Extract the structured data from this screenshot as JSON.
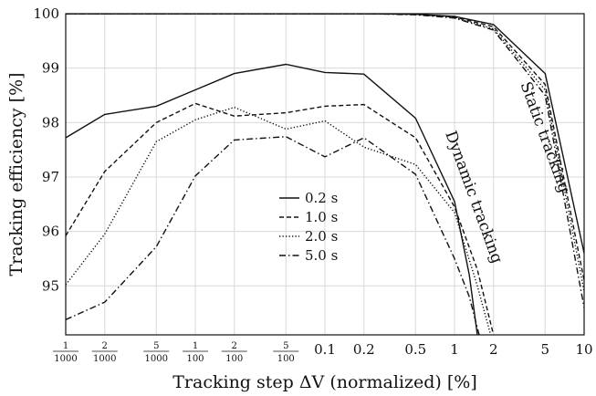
{
  "chart_data": {
    "type": "line",
    "xlabel": "Tracking step ΔV (normalized) [%]",
    "ylabel": "Tracking efficiency [%]",
    "xscale": "log",
    "xlim": [
      0.001,
      10
    ],
    "ylim": [
      94.1,
      100
    ],
    "grid": true,
    "legend_position": "center",
    "x_ticks": [
      {
        "value": 0.001,
        "num": "1",
        "den": "1000"
      },
      {
        "value": 0.002,
        "num": "2",
        "den": "1000"
      },
      {
        "value": 0.005,
        "num": "5",
        "den": "1000"
      },
      {
        "value": 0.01,
        "num": "1",
        "den": "100"
      },
      {
        "value": 0.02,
        "num": "2",
        "den": "100"
      },
      {
        "value": 0.05,
        "num": "5",
        "den": "100"
      },
      {
        "value": 0.1,
        "label": "0.1"
      },
      {
        "value": 0.2,
        "label": "0.2"
      },
      {
        "value": 0.5,
        "label": "0.5"
      },
      {
        "value": 1,
        "label": "1"
      },
      {
        "value": 2,
        "label": "2"
      },
      {
        "value": 5,
        "label": "5"
      },
      {
        "value": 10,
        "label": "10"
      }
    ],
    "y_ticks": [
      95,
      96,
      97,
      98,
      99,
      100
    ],
    "annotations": [
      {
        "text": "Dynamic tracking",
        "x": 1.3,
        "y": 96.6
      },
      {
        "text": "Static tracking",
        "x": 4.6,
        "y": 97.7
      }
    ],
    "series": [
      {
        "name": "0.2 s",
        "dash": "solid",
        "group": "dynamic",
        "x": [
          0.001,
          0.002,
          0.005,
          0.01,
          0.02,
          0.05,
          0.1,
          0.2,
          0.5,
          1,
          1.3,
          1.5
        ],
        "y": [
          97.72,
          98.15,
          98.3,
          98.6,
          98.9,
          99.07,
          98.92,
          98.89,
          98.08,
          96.55,
          95.2,
          94.1
        ]
      },
      {
        "name": "1.0 s",
        "dash": "dashed",
        "group": "dynamic",
        "x": [
          0.001,
          0.002,
          0.005,
          0.01,
          0.02,
          0.05,
          0.1,
          0.2,
          0.5,
          1,
          1.5,
          2
        ],
        "y": [
          95.92,
          97.1,
          98.0,
          98.35,
          98.12,
          98.18,
          98.3,
          98.33,
          97.72,
          96.45,
          95.3,
          94.1
        ]
      },
      {
        "name": "2.0 s",
        "dash": "dotted",
        "group": "dynamic",
        "x": [
          0.001,
          0.002,
          0.005,
          0.01,
          0.02,
          0.05,
          0.1,
          0.2,
          0.5,
          1,
          1.5,
          1.9
        ],
        "y": [
          95.02,
          95.95,
          97.65,
          98.05,
          98.28,
          97.88,
          98.03,
          97.55,
          97.23,
          96.35,
          95.0,
          94.1
        ]
      },
      {
        "name": "5.0 s",
        "dash": "dashdot",
        "group": "dynamic",
        "x": [
          0.001,
          0.002,
          0.005,
          0.01,
          0.02,
          0.05,
          0.1,
          0.2,
          0.5,
          1,
          1.3,
          1.55
        ],
        "y": [
          94.38,
          94.7,
          95.72,
          97.02,
          97.68,
          97.74,
          97.37,
          97.72,
          97.05,
          95.5,
          94.8,
          94.1
        ]
      },
      {
        "name": "0.2 s",
        "dash": "solid",
        "group": "static",
        "x": [
          0.001,
          0.01,
          0.1,
          0.2,
          0.5,
          1,
          2,
          5,
          10
        ],
        "y": [
          100,
          100,
          100,
          100,
          99.99,
          99.95,
          99.8,
          98.9,
          95.6
        ]
      },
      {
        "name": "1.0 s",
        "dash": "dashed",
        "group": "static",
        "x": [
          0.001,
          0.01,
          0.1,
          0.2,
          0.5,
          1,
          2,
          5,
          10
        ],
        "y": [
          100,
          100,
          100,
          100,
          99.99,
          99.94,
          99.76,
          98.7,
          95.1
        ]
      },
      {
        "name": "2.0 s",
        "dash": "dotted",
        "group": "static",
        "x": [
          0.001,
          0.01,
          0.1,
          0.2,
          0.5,
          1,
          2,
          5,
          10
        ],
        "y": [
          100,
          100,
          100,
          100,
          99.99,
          99.93,
          99.72,
          98.6,
          94.9
        ]
      },
      {
        "name": "5.0 s",
        "dash": "dashdot",
        "group": "static",
        "x": [
          0.001,
          0.01,
          0.1,
          0.2,
          0.5,
          1,
          2,
          5,
          10
        ],
        "y": [
          100,
          100,
          100,
          100,
          99.98,
          99.92,
          99.7,
          98.5,
          94.6
        ]
      }
    ],
    "legend": [
      {
        "label": "0.2 s",
        "dash": "solid"
      },
      {
        "label": "1.0 s",
        "dash": "dashed"
      },
      {
        "label": "2.0 s",
        "dash": "dotted"
      },
      {
        "label": "5.0 s",
        "dash": "dashdot"
      }
    ]
  }
}
